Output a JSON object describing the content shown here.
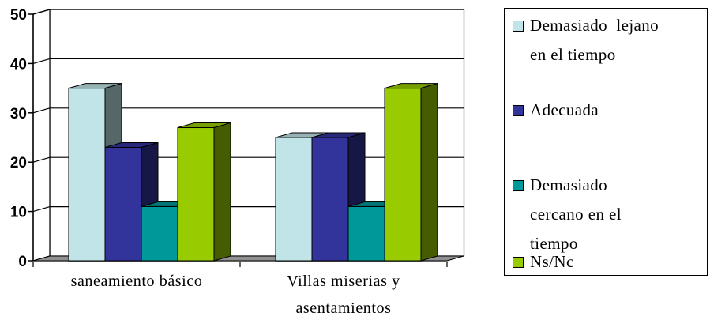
{
  "chart_data": {
    "type": "bar",
    "categories": [
      "saneamiento básico",
      "Villas miserias y asentamientos"
    ],
    "category_lines": [
      [
        "saneamiento básico"
      ],
      [
        "Villas miserias y",
        "asentamientos"
      ]
    ],
    "series": [
      {
        "name": "Demasiado lejano en el tiempo",
        "label_lines": [
          "Demasiado  lejano",
          "en el tiempo"
        ],
        "values": [
          35,
          25
        ],
        "color": "#c0e4e8"
      },
      {
        "name": "Adecuada",
        "label_lines": [
          "Adecuada"
        ],
        "values": [
          23,
          25
        ],
        "color": "#33339c"
      },
      {
        "name": "Demasiado cercano en el tiempo",
        "label_lines": [
          "Demasiado",
          "cercano en el",
          "tiempo"
        ],
        "values": [
          11,
          11
        ],
        "color": "#009999"
      },
      {
        "name": "Ns/Nc",
        "label_lines": [
          "Ns/Nc"
        ],
        "values": [
          27,
          35
        ],
        "color": "#99cc00"
      }
    ],
    "yticks": [
      0,
      10,
      20,
      30,
      40,
      50
    ],
    "ylim": [
      0,
      50
    ],
    "grid": true,
    "legend_position": "right",
    "style": "3d-clustered-column"
  }
}
